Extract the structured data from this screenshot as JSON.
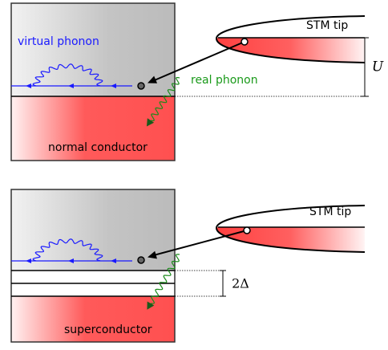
{
  "top_panel": {
    "virtual_phonon_label": "virtual phonon",
    "tip_label": "STM tip",
    "real_phonon_label": "real phonon",
    "voltage_label": "U",
    "material_label": "normal conductor"
  },
  "bottom_panel": {
    "tip_label": "STM tip",
    "gap_label": "2Δ",
    "material_label": "superconductor"
  }
}
